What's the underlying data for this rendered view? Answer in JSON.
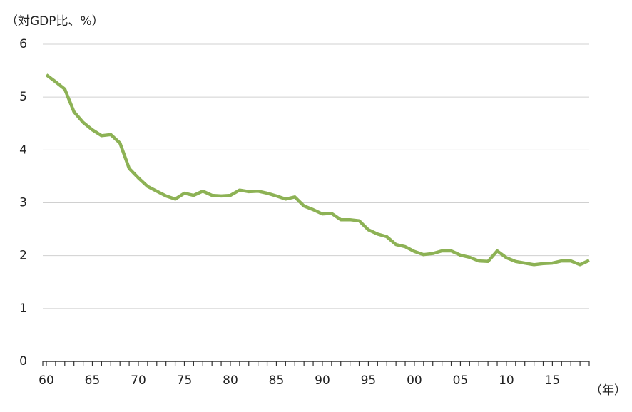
{
  "chart_data": {
    "type": "line",
    "ylabel": "（対GDP比、%）",
    "xlabel": "（年）",
    "categories": [
      "60",
      null,
      null,
      null,
      null,
      "65",
      null,
      null,
      null,
      null,
      "70",
      null,
      null,
      null,
      null,
      "75",
      null,
      null,
      null,
      null,
      "80",
      null,
      null,
      null,
      null,
      "85",
      null,
      null,
      null,
      null,
      "90",
      null,
      null,
      null,
      null,
      "95",
      null,
      null,
      null,
      null,
      "00",
      null,
      null,
      null,
      null,
      "05",
      null,
      null,
      null,
      null,
      "10",
      null,
      null,
      null,
      null,
      "15",
      null,
      null,
      null,
      null
    ],
    "values": [
      5.42,
      5.29,
      5.15,
      4.72,
      4.52,
      4.38,
      4.27,
      4.29,
      4.13,
      3.65,
      3.47,
      3.31,
      3.22,
      3.13,
      3.07,
      3.18,
      3.14,
      3.22,
      3.14,
      3.13,
      3.14,
      3.24,
      3.21,
      3.22,
      3.18,
      3.13,
      3.07,
      3.11,
      2.94,
      2.87,
      2.79,
      2.8,
      2.68,
      2.68,
      2.66,
      2.49,
      2.41,
      2.36,
      2.21,
      2.17,
      2.08,
      2.02,
      2.04,
      2.09,
      2.09,
      2.01,
      1.97,
      1.9,
      1.89,
      2.09,
      1.96,
      1.89,
      1.86,
      1.83,
      1.85,
      1.86,
      1.9,
      1.9,
      1.83,
      1.91
    ],
    "color": "#8db255",
    "ylim": [
      0,
      6
    ],
    "yticks": [
      0,
      1,
      2,
      3,
      4,
      5,
      6
    ],
    "grid": true
  }
}
